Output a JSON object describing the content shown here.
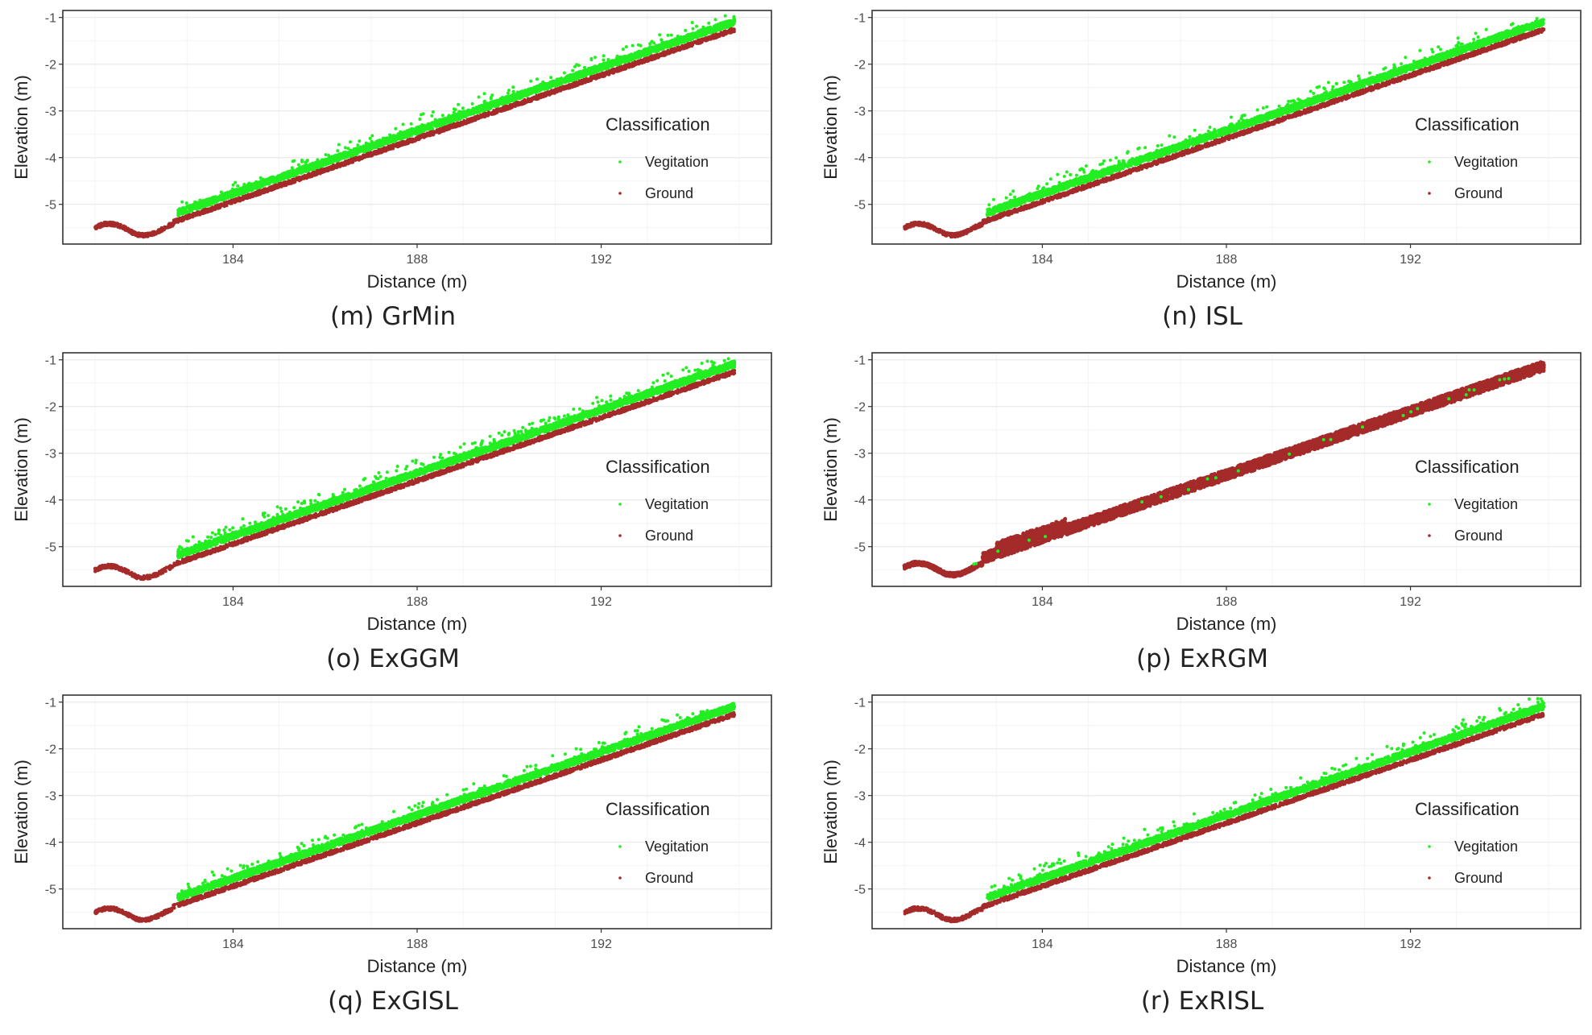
{
  "chart_data": [
    {
      "type": "scatter",
      "caption": "(m) GrMin",
      "xlabel": "Distance (m)",
      "ylabel": "Elevation (m)",
      "xlim": [
        180.3,
        195.7
      ],
      "ylim": [
        -5.85,
        -0.85
      ],
      "xticks": [
        184,
        188,
        192
      ],
      "xtick_labels": [
        "184",
        "188",
        "192"
      ],
      "yticks": [
        -1,
        -2,
        -3,
        -4,
        -5
      ],
      "ytick_labels": [
        "-1",
        "-2",
        "-3",
        "-4",
        "-5"
      ],
      "grid": true,
      "legend": {
        "title": "Classification",
        "position": "right",
        "entries": [
          "Vegitation",
          "Ground"
        ]
      },
      "series": [
        {
          "name": "Vegitation",
          "color": "#22ee22",
          "profile": "upper",
          "x_range": [
            182.8,
            194.9
          ]
        },
        {
          "name": "Ground",
          "color": "#a52a2a",
          "profile": "lower",
          "x_range": [
            181.0,
            194.9
          ]
        }
      ]
    },
    {
      "type": "scatter",
      "caption": "(n) ISL",
      "xlabel": "Distance (m)",
      "ylabel": "Elevation (m)",
      "xlim": [
        180.3,
        195.7
      ],
      "ylim": [
        -5.85,
        -0.85
      ],
      "xticks": [
        184,
        188,
        192
      ],
      "xtick_labels": [
        "184",
        "188",
        "192"
      ],
      "yticks": [
        -1,
        -2,
        -3,
        -4,
        -5
      ],
      "ytick_labels": [
        "-1",
        "-2",
        "-3",
        "-4",
        "-5"
      ],
      "grid": true,
      "legend": {
        "title": "Classification",
        "position": "right",
        "entries": [
          "Vegitation",
          "Ground"
        ]
      },
      "series": [
        {
          "name": "Vegitation",
          "color": "#22ee22",
          "profile": "upper",
          "x_range": [
            182.8,
            194.9
          ]
        },
        {
          "name": "Ground",
          "color": "#a52a2a",
          "profile": "lower",
          "x_range": [
            181.0,
            194.9
          ]
        }
      ]
    },
    {
      "type": "scatter",
      "caption": "(o) ExGGM",
      "xlabel": "Distance (m)",
      "ylabel": "Elevation (m)",
      "xlim": [
        180.3,
        195.7
      ],
      "ylim": [
        -5.85,
        -0.85
      ],
      "xticks": [
        184,
        188,
        192
      ],
      "xtick_labels": [
        "184",
        "188",
        "192"
      ],
      "yticks": [
        -1,
        -2,
        -3,
        -4,
        -5
      ],
      "ytick_labels": [
        "-1",
        "-2",
        "-3",
        "-4",
        "-5"
      ],
      "grid": true,
      "legend": {
        "title": "Classification",
        "position": "right",
        "entries": [
          "Vegitation",
          "Ground"
        ]
      },
      "series": [
        {
          "name": "Vegitation",
          "color": "#22ee22",
          "profile": "upper",
          "x_range": [
            182.8,
            194.9
          ]
        },
        {
          "name": "Ground",
          "color": "#a52a2a",
          "profile": "lower",
          "x_range": [
            181.0,
            194.9
          ]
        }
      ]
    },
    {
      "type": "scatter",
      "caption": "(p) ExRGM",
      "xlabel": "Distance (m)",
      "ylabel": "Elevation (m)",
      "xlim": [
        180.3,
        195.7
      ],
      "ylim": [
        -5.85,
        -0.85
      ],
      "xticks": [
        184,
        188,
        192
      ],
      "xtick_labels": [
        "184",
        "188",
        "192"
      ],
      "yticks": [
        -1,
        -2,
        -3,
        -4,
        -5
      ],
      "ytick_labels": [
        "-1",
        "-2",
        "-3",
        "-4",
        "-5"
      ],
      "grid": true,
      "legend": {
        "title": "Classification",
        "position": "right",
        "entries": [
          "Vegitation",
          "Ground"
        ]
      },
      "series": [
        {
          "name": "Vegitation",
          "color": "#22ee22",
          "profile": "sparse",
          "x_range": [
            181.2,
            194.9
          ]
        },
        {
          "name": "Ground",
          "color": "#a52a2a",
          "profile": "full",
          "x_range": [
            181.0,
            194.9
          ]
        }
      ]
    },
    {
      "type": "scatter",
      "caption": "(q) ExGISL",
      "xlabel": "Distance (m)",
      "ylabel": "Elevation (m)",
      "xlim": [
        180.3,
        195.7
      ],
      "ylim": [
        -5.85,
        -0.85
      ],
      "xticks": [
        184,
        188,
        192
      ],
      "xtick_labels": [
        "184",
        "188",
        "192"
      ],
      "yticks": [
        -1,
        -2,
        -3,
        -4,
        -5
      ],
      "ytick_labels": [
        "-1",
        "-2",
        "-3",
        "-4",
        "-5"
      ],
      "grid": true,
      "legend": {
        "title": "Classification",
        "position": "right",
        "entries": [
          "Vegitation",
          "Ground"
        ]
      },
      "series": [
        {
          "name": "Vegitation",
          "color": "#22ee22",
          "profile": "upper",
          "x_range": [
            182.8,
            194.9
          ]
        },
        {
          "name": "Ground",
          "color": "#a52a2a",
          "profile": "lower",
          "x_range": [
            181.0,
            194.9
          ]
        }
      ]
    },
    {
      "type": "scatter",
      "caption": "(r) ExRISL",
      "xlabel": "Distance (m)",
      "ylabel": "Elevation (m)",
      "xlim": [
        180.3,
        195.7
      ],
      "ylim": [
        -5.85,
        -0.85
      ],
      "xticks": [
        184,
        188,
        192
      ],
      "xtick_labels": [
        "184",
        "188",
        "192"
      ],
      "yticks": [
        -1,
        -2,
        -3,
        -4,
        -5
      ],
      "ytick_labels": [
        "-1",
        "-2",
        "-3",
        "-4",
        "-5"
      ],
      "grid": true,
      "legend": {
        "title": "Classification",
        "position": "right",
        "entries": [
          "Vegitation",
          "Ground"
        ]
      },
      "series": [
        {
          "name": "Vegitation",
          "color": "#22ee22",
          "profile": "upper",
          "x_range": [
            182.8,
            194.9
          ]
        },
        {
          "name": "Ground",
          "color": "#a52a2a",
          "profile": "lower",
          "x_range": [
            181.0,
            194.9
          ]
        }
      ]
    }
  ]
}
